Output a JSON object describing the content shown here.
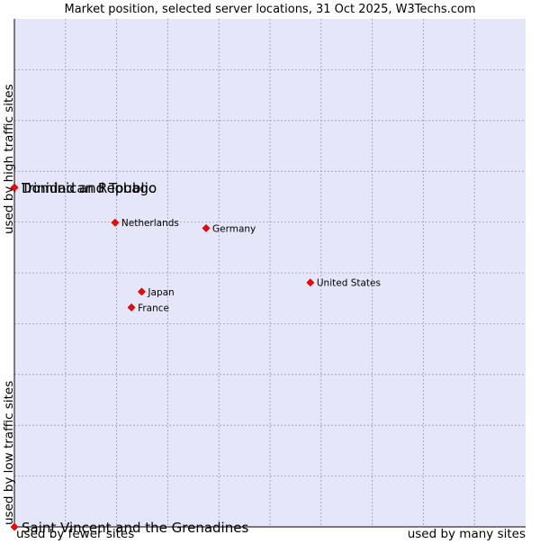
{
  "chart_data": {
    "type": "scatter",
    "title": "Market position, selected server locations, 31 Oct 2025, W3Techs.com",
    "xlabel_left": "used by fewer sites",
    "xlabel_right": "used by many sites",
    "ylabel_bottom": "used by low traffic sites",
    "ylabel_top": "used by high traffic sites",
    "xlim": [
      0,
      100
    ],
    "ylim": [
      0,
      100
    ],
    "grid": true,
    "points": [
      {
        "label": "Dominican Republic",
        "x": 0.0,
        "y": 66.8,
        "large": true
      },
      {
        "label": "Trinidad and Tobago",
        "x": 0.0,
        "y": 66.8,
        "large": true
      },
      {
        "label": "Netherlands",
        "x": 19.7,
        "y": 59.9,
        "large": false
      },
      {
        "label": "Germany",
        "x": 37.5,
        "y": 58.8,
        "large": false
      },
      {
        "label": "United States",
        "x": 57.9,
        "y": 48.1,
        "large": false
      },
      {
        "label": "Japan",
        "x": 24.9,
        "y": 46.3,
        "large": false
      },
      {
        "label": "France",
        "x": 22.9,
        "y": 43.2,
        "large": false
      },
      {
        "label": "Saint Vincent and the Grenadines",
        "x": 0.0,
        "y": 0.0,
        "large": true
      }
    ],
    "colors": {
      "plot_bg": "#e6e6fa",
      "grid": "#9a9ab8",
      "axis": "#000000",
      "marker": "#ff0000",
      "marker_edge": "#c00000"
    }
  }
}
